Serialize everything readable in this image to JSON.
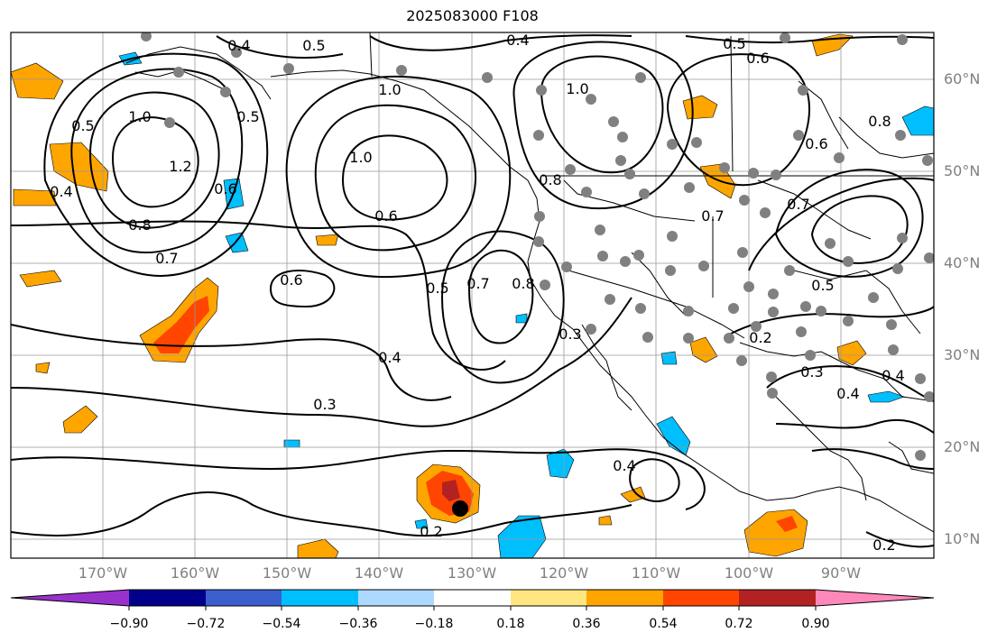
{
  "title": "2025083000 F108",
  "lat_labels": [
    "60°N",
    "50°N",
    "40°N",
    "30°N",
    "20°N",
    "10°N"
  ],
  "lon_labels": [
    "170°W",
    "160°W",
    "150°W",
    "140°W",
    "130°W",
    "120°W",
    "110°W",
    "100°W",
    "90°W"
  ],
  "contour_labels": [
    "0.4",
    "0.5",
    "0.4",
    "0.5",
    "1.0",
    "1.0",
    "0.5",
    "1.2",
    "0.8",
    "0.7",
    "0.6",
    "0.6",
    "0.6",
    "0.5",
    "0.7",
    "0.8",
    "0.4",
    "0.3",
    "0.2",
    "0.4",
    "0.3",
    "0.2",
    "0.3",
    "0.4",
    "0.4",
    "0.5",
    "0.6",
    "0.7",
    "0.8",
    "1.0",
    "1.0",
    "0.8",
    "0.4",
    "0.6",
    "0.5",
    "0.7",
    "0.2"
  ],
  "colorbar": {
    "tick_labels": [
      "−0.90",
      "−0.72",
      "−0.54",
      "−0.36",
      "−0.18",
      "0.18",
      "0.36",
      "0.54",
      "0.72",
      "0.90"
    ],
    "colors": [
      "#9932cc",
      "#00008b",
      "#3a5fcd",
      "#00bfff",
      "#add8ff",
      "#ffffff",
      "#ffe680",
      "#ffa500",
      "#ff4500",
      "#b22222",
      "#ff88bb"
    ]
  },
  "colors": {
    "orange": "#ffa500",
    "red": "#ff4500",
    "darkred": "#b22222",
    "cyan": "#00bfff",
    "gray_marker": "#808080"
  }
}
